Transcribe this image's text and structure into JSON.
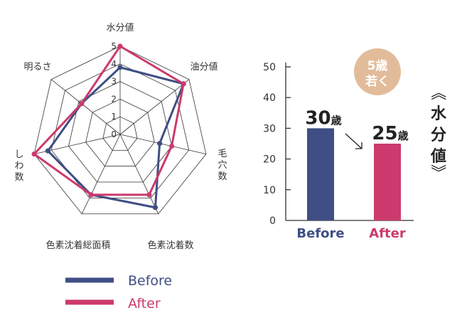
{
  "colors": {
    "before": "#3f4e84",
    "after": "#cc3a6e",
    "badge": "#e2bc9a",
    "grid": "#333333"
  },
  "chart_data": [
    {
      "type": "radar",
      "axes": [
        "水分値",
        "油分値",
        "毛穴数",
        "色素沈着数",
        "色素沈着総面積",
        "しわ数",
        "明るさ"
      ],
      "rlim": [
        0,
        5
      ],
      "ticks": [
        "0",
        "1",
        "2",
        "3",
        "4",
        "5"
      ],
      "series": [
        {
          "name": "Before",
          "values": [
            3.8,
            4.6,
            2.3,
            4.6,
            3.8,
            4.2,
            2.8
          ]
        },
        {
          "name": "After",
          "values": [
            5.0,
            4.6,
            3.0,
            3.8,
            3.8,
            5.0,
            2.8
          ]
        }
      ],
      "legend": "bottom-left"
    },
    {
      "type": "bar",
      "categories": [
        "Before",
        "After"
      ],
      "values": [
        30,
        25
      ],
      "value_labels": [
        {
          "num": "30",
          "unit": "歳"
        },
        {
          "num": "25",
          "unit": "歳"
        }
      ],
      "ylim": [
        0,
        50
      ],
      "yticks": [
        "0",
        "10",
        "20",
        "30",
        "40",
        "50"
      ],
      "ylabel": "水分値",
      "badge": {
        "line1": "5歳",
        "line2": "若く"
      }
    }
  ]
}
